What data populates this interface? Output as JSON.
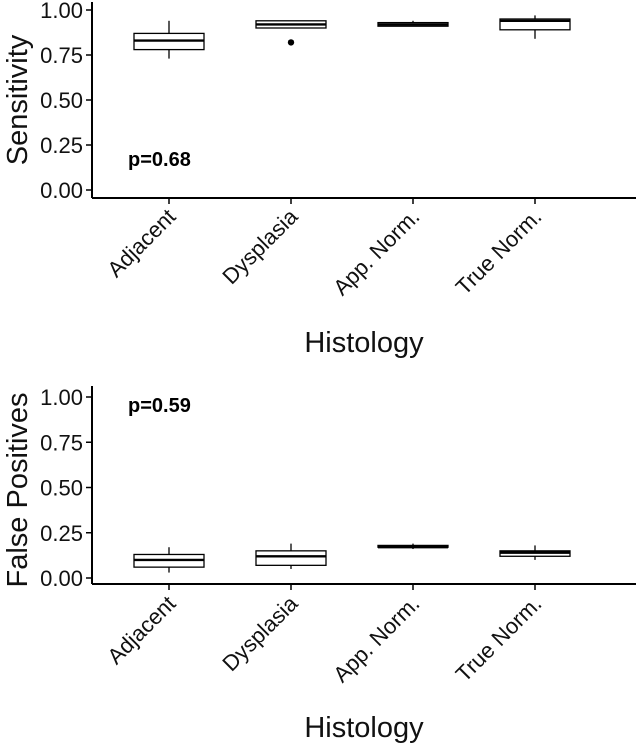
{
  "chart_data": [
    {
      "type": "box",
      "categories": [
        "Adjacent",
        "Dysplasia",
        "App. Norm.",
        "True Norm."
      ],
      "xlabel": "Histology",
      "ylabel": "Sensitivity",
      "ylim": [
        0,
        1
      ],
      "yticks": [
        "0.00",
        "0.25",
        "0.50",
        "0.75",
        "1.00"
      ],
      "annotation": "p=0.68",
      "grid": false,
      "boxes": [
        {
          "category": "Adjacent",
          "min": 0.73,
          "q1": 0.78,
          "median": 0.83,
          "q3": 0.87,
          "max": 0.94,
          "outliers": []
        },
        {
          "category": "Dysplasia",
          "min": 0.9,
          "q1": 0.9,
          "median": 0.92,
          "q3": 0.94,
          "max": 0.94,
          "outliers": [
            0.82
          ]
        },
        {
          "category": "App. Norm.",
          "min": 0.91,
          "q1": 0.91,
          "median": 0.92,
          "q3": 0.93,
          "max": 0.94,
          "outliers": []
        },
        {
          "category": "True Norm.",
          "min": 0.84,
          "q1": 0.89,
          "median": 0.94,
          "q3": 0.95,
          "max": 0.97,
          "outliers": []
        }
      ]
    },
    {
      "type": "box",
      "categories": [
        "Adjacent",
        "Dysplasia",
        "App. Norm.",
        "True Norm."
      ],
      "xlabel": "Histology",
      "ylabel": "False Positives",
      "ylim": [
        0,
        1
      ],
      "yticks": [
        "0.00",
        "0.25",
        "0.50",
        "0.75",
        "1.00"
      ],
      "annotation": "p=0.59",
      "grid": false,
      "boxes": [
        {
          "category": "Adjacent",
          "min": 0.03,
          "q1": 0.06,
          "median": 0.1,
          "q3": 0.13,
          "max": 0.17,
          "outliers": []
        },
        {
          "category": "Dysplasia",
          "min": 0.05,
          "q1": 0.07,
          "median": 0.12,
          "q3": 0.15,
          "max": 0.19,
          "outliers": []
        },
        {
          "category": "App. Norm.",
          "min": 0.16,
          "q1": 0.17,
          "median": 0.17,
          "q3": 0.18,
          "max": 0.19,
          "outliers": []
        },
        {
          "category": "True Norm.",
          "min": 0.1,
          "q1": 0.12,
          "median": 0.14,
          "q3": 0.15,
          "max": 0.18,
          "outliers": []
        }
      ]
    }
  ]
}
